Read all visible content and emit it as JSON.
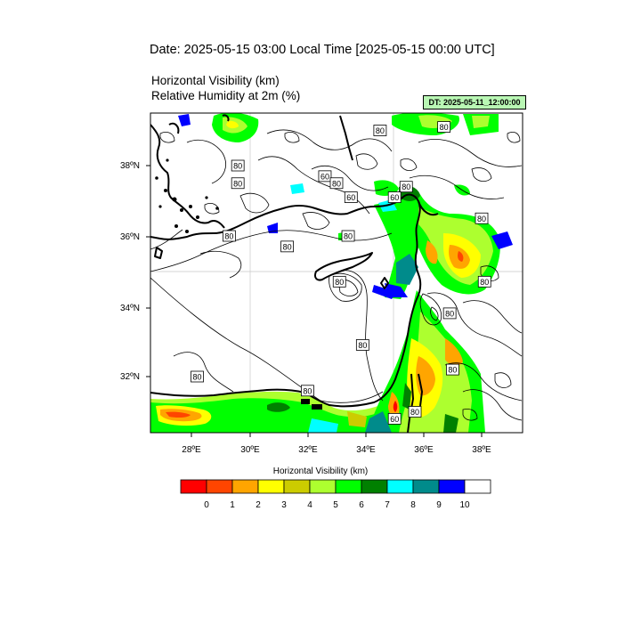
{
  "header": {
    "title": "Date: 2025-05-15  03:00 Local Time [2025-05-15  00:00 UTC]",
    "subtitle_line1": "Horizontal Visibility   (km)",
    "subtitle_line2": "Relative Humidity at 2m   (%)",
    "dt_box": "DT: 2025-05-11_12:00:00",
    "dt_box_color": "#b9f7b4"
  },
  "axes": {
    "lon_ticks": [
      "28ºE",
      "30ºE",
      "32ºE",
      "34ºE",
      "36ºE",
      "38ºE"
    ],
    "lat_ticks": [
      "38ºN",
      "36ºN",
      "34ºN",
      "32ºN"
    ]
  },
  "contour_labels": [
    {
      "text": "80",
      "lon": 29.6,
      "lat": 38.0
    },
    {
      "text": "80",
      "lon": 29.6,
      "lat": 37.5
    },
    {
      "text": "60",
      "lon": 33.5,
      "lat": 37.1
    },
    {
      "text": "60",
      "lon": 32.6,
      "lat": 37.7
    },
    {
      "text": "80",
      "lon": 34.5,
      "lat": 39.0
    },
    {
      "text": "80",
      "lon": 33.0,
      "lat": 37.5
    },
    {
      "text": "80",
      "lon": 35.4,
      "lat": 37.4
    },
    {
      "text": "60",
      "lon": 35.0,
      "lat": 37.1
    },
    {
      "text": "80",
      "lon": 36.7,
      "lat": 39.1
    },
    {
      "text": "80",
      "lon": 38.0,
      "lat": 36.5
    },
    {
      "text": "80",
      "lon": 29.3,
      "lat": 36.0
    },
    {
      "text": "80",
      "lon": 33.4,
      "lat": 36.0
    },
    {
      "text": "80",
      "lon": 31.3,
      "lat": 35.7
    },
    {
      "text": "80",
      "lon": 38.1,
      "lat": 34.7
    },
    {
      "text": "80",
      "lon": 33.1,
      "lat": 34.7
    },
    {
      "text": "80",
      "lon": 36.9,
      "lat": 33.8
    },
    {
      "text": "80",
      "lon": 33.9,
      "lat": 32.9
    },
    {
      "text": "80",
      "lon": 37.0,
      "lat": 32.2
    },
    {
      "text": "80",
      "lon": 28.2,
      "lat": 32.0
    },
    {
      "text": "80",
      "lon": 32.0,
      "lat": 31.6
    },
    {
      "text": "80",
      "lon": 35.7,
      "lat": 31.0
    },
    {
      "text": "60",
      "lon": 35.0,
      "lat": 30.8
    }
  ],
  "legend": {
    "title": "Horizontal Visibility  (km)",
    "colors": [
      "#ff0000",
      "#ff4500",
      "#ffa500",
      "#ffff00",
      "#cccc00",
      "#adff2f",
      "#00ff00",
      "#008000",
      "#00ffff",
      "#008b8b",
      "#0000ff",
      "#ffffff"
    ],
    "labels": [
      "0",
      "1",
      "2",
      "3",
      "4",
      "5",
      "6",
      "7",
      "8",
      "9",
      "10"
    ]
  }
}
